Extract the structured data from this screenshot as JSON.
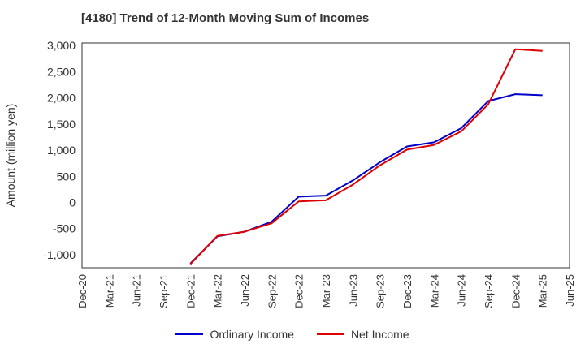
{
  "chart_data": {
    "type": "line",
    "title": "[4180]  Trend of 12-Month Moving Sum of Incomes",
    "xlabel": "",
    "ylabel": "Amount (million yen)",
    "x_ticks": [
      "Dec-20",
      "Mar-21",
      "Jun-21",
      "Sep-21",
      "Dec-21",
      "Mar-22",
      "Jun-22",
      "Sep-22",
      "Dec-22",
      "Mar-23",
      "Jun-23",
      "Sep-23",
      "Dec-23",
      "Mar-24",
      "Jun-24",
      "Sep-24",
      "Dec-24",
      "Mar-25",
      "Jun-25"
    ],
    "y_ticks": [
      -1000,
      -500,
      0,
      500,
      1000,
      1500,
      2000,
      2500,
      3000
    ],
    "y_tick_labels": [
      "-1,000",
      "-500",
      "0",
      "500",
      "1,000",
      "1,500",
      "2,000",
      "2,500",
      "3,000"
    ],
    "ylim": [
      -1250,
      3050
    ],
    "grid": true,
    "legend_position": "bottom-center",
    "series": [
      {
        "name": "Ordinary Income",
        "color": "#0000cc",
        "x": [
          "Dec-21",
          "Mar-22",
          "Jun-22",
          "Sep-22",
          "Dec-22",
          "Mar-23",
          "Jun-23",
          "Sep-23",
          "Dec-23",
          "Mar-24",
          "Jun-24",
          "Sep-24",
          "Dec-24",
          "Mar-25"
        ],
        "values": [
          -1170,
          -650,
          -560,
          -370,
          110,
          130,
          420,
          770,
          1070,
          1150,
          1420,
          1940,
          2070,
          2050
        ]
      },
      {
        "name": "Net Income",
        "color": "#dd0000",
        "x": [
          "Dec-21",
          "Mar-22",
          "Jun-22",
          "Sep-22",
          "Dec-22",
          "Mar-23",
          "Jun-23",
          "Sep-23",
          "Dec-23",
          "Mar-24",
          "Jun-24",
          "Sep-24",
          "Dec-24",
          "Mar-25"
        ],
        "values": [
          -1180,
          -640,
          -560,
          -400,
          20,
          40,
          340,
          710,
          1010,
          1100,
          1360,
          1880,
          2930,
          2900
        ]
      }
    ]
  }
}
